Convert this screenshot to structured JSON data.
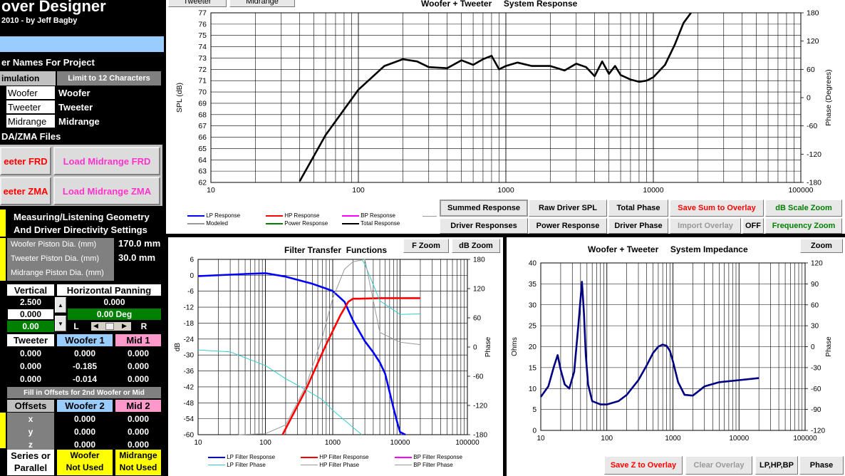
{
  "app": {
    "title": "over Designer",
    "subtitle": "2010 -  by Jeff Bagby"
  },
  "left": {
    "names_header": "er Names For Project",
    "simulation_label": "imulation",
    "limit_note": "Limit to 12 Characters",
    "drivers": [
      {
        "label": "Woofer",
        "value": "Woofer"
      },
      {
        "label": "Tweeter",
        "value": "Tweeter"
      },
      {
        "label": "Midrange",
        "value": "Midrange"
      }
    ],
    "files_header": "DA/ZMA Files",
    "btn_tweeter_frd": "eeter FRD",
    "btn_mid_frd": "Load Midrange FRD",
    "btn_tweeter_zma": "eeter ZMA",
    "btn_mid_zma": "Load Midrange ZMA",
    "geom_header_1": "Measuring/Listening Geometry",
    "geom_header_2": "And Driver Directivity Settings",
    "piston": [
      {
        "label": "Woofer Piston Dia. (mm)",
        "value": "170.0 mm"
      },
      {
        "label": "Tweeter Piston Dia. (mm)",
        "value": "30.0 mm"
      },
      {
        "label": "Midrange Piston Dia. (mm)",
        "value": ""
      }
    ],
    "vertical_label": "Vertical",
    "horizontal_label": "Horizontal Panning",
    "vertical_values": [
      "2.500",
      "0.000",
      "0.00"
    ],
    "horizontal_value": "0.000",
    "deg_value": "0.00 Deg",
    "pan_l": "L",
    "pan_r": "R",
    "offset_cols": [
      "Tweeter",
      "Woofer 1",
      "Mid 1"
    ],
    "offset_rows": [
      [
        "0.000",
        "0.000",
        "0.000"
      ],
      [
        "0.000",
        "-0.185",
        "0.000"
      ],
      [
        "0.000",
        "-0.014",
        "0.000"
      ]
    ],
    "second_note": "Fill in Offsets for 2nd Woofer or Mid",
    "offsets2_cols": [
      "Offsets",
      "Woofer 2",
      "Mid 2"
    ],
    "offsets2_rows": [
      [
        "x",
        "0.000",
        "0.000"
      ],
      [
        "y",
        "0.000",
        "0.000"
      ],
      [
        "z",
        "0.000",
        "0.000"
      ]
    ],
    "series_label_1": "Series or",
    "series_label_2": "Parallel",
    "woofer_state_1": "Woofer",
    "woofer_state_2": "Not Used",
    "mid_state_1": "Midrange",
    "mid_state_2": "Not Used"
  },
  "top_tabs": [
    "Tweeter",
    "Midrange"
  ],
  "top_chart": {
    "title": "Woofer + Tweeter     System Response",
    "ylabel": "SPL (dB)",
    "y2label": "Phase (Degrees)",
    "y_ticks": [
      "77",
      "76",
      "75",
      "74",
      "73",
      "72",
      "71",
      "70",
      "69",
      "68",
      "67",
      "66",
      "65",
      "64",
      "63",
      "62"
    ],
    "y2_ticks": [
      "180",
      "120",
      "60",
      "0",
      "-60",
      "-120",
      "-180"
    ],
    "x_ticks": [
      "10",
      "100",
      "1000",
      "10000",
      "100000"
    ],
    "legend": [
      {
        "label": "LP Response",
        "color": "#0000ff"
      },
      {
        "label": "HP Response",
        "color": "#ff0000"
      },
      {
        "label": "BP Response",
        "color": "#ff00ff"
      },
      {
        "label": "Modeled",
        "color": "#999999"
      },
      {
        "label": "Power Response",
        "color": "#008000"
      },
      {
        "label": "Total Response",
        "color": "#000000"
      }
    ]
  },
  "chart_buttons": {
    "summed": "Summed Response",
    "raw": "Raw Driver SPL",
    "total_phase": "Total Phase",
    "save_sum": "Save Sum to Overlay",
    "db_zoom": "dB Scale Zoom",
    "driver_resp": "Driver Responses",
    "power_resp": "Power Response",
    "driver_phase": "Driver Phase",
    "import_overlay": "Import Overlay",
    "off": "OFF",
    "freq_zoom": "Frequency Zoom"
  },
  "filter_chart": {
    "title": "Filter Transfer  Functions",
    "f_zoom": "F Zoom",
    "db_zoom": "dB Zoom",
    "ylabel": "dB",
    "y2label": "Phase",
    "y_ticks": [
      "6",
      "0",
      "-6",
      "-12",
      "-18",
      "-24",
      "-30",
      "-36",
      "-42",
      "-48",
      "-54",
      "-60"
    ],
    "y2_ticks": [
      "180",
      "120",
      "60",
      "0",
      "-60",
      "-120",
      "-180"
    ],
    "x_ticks": [
      "10",
      "100",
      "1000",
      "10000",
      "100000"
    ],
    "legend": [
      {
        "label": "LP Filter Response",
        "color": "#0000ff"
      },
      {
        "label": "HP Filter Response",
        "color": "#ff0000"
      },
      {
        "label": "BP Filter Response",
        "color": "#ff00ff"
      },
      {
        "label": "LP Filter Phase",
        "color": "#33cccc"
      },
      {
        "label": "HP Filter Phase",
        "color": "#999999"
      },
      {
        "label": "BP Filter Phase",
        "color": "#999999"
      }
    ]
  },
  "impedance_chart": {
    "title": "Woofer + Tweeter     System Impedance",
    "zoom": "Zoom",
    "ylabel": "Ohms",
    "y2label": "Phase",
    "y_ticks": [
      "40",
      "35",
      "30",
      "25",
      "20",
      "15",
      "10",
      "5",
      "0"
    ],
    "y2_ticks": [
      "120",
      "90",
      "60",
      "30",
      "0",
      "-30",
      "-60",
      "-90",
      "-120"
    ],
    "x_ticks": [
      "10",
      "100",
      "1000",
      "10000",
      "100000"
    ]
  },
  "bottom_buttons": {
    "save_z": "Save Z to Overlay",
    "clear": "Clear Overlay",
    "lphpbp": "LP,HP,BP",
    "phase": "Phase"
  },
  "chart_data": [
    {
      "type": "line",
      "title": "Woofer + Tweeter     System Response",
      "ylabel": "SPL (dB)",
      "xscale": "log",
      "xlim": [
        10,
        100000
      ],
      "ylim": [
        62,
        77
      ],
      "y2lim": [
        -180,
        180
      ],
      "series": [
        {
          "name": "Total Response",
          "color": "#000000",
          "x": [
            40,
            60,
            100,
            150,
            200,
            250,
            300,
            400,
            500,
            600,
            700,
            800,
            900,
            1000,
            1200,
            1500,
            2000,
            2500,
            3000,
            3500,
            4000,
            4500,
            5000,
            5500,
            6000,
            7000,
            8000,
            9000,
            10000,
            12000,
            14000,
            16000,
            18000
          ],
          "y": [
            62.1,
            66.2,
            70.2,
            72.3,
            72.9,
            72.7,
            72.2,
            72.1,
            72.8,
            72.4,
            72.9,
            73.2,
            72.0,
            72.3,
            72.6,
            72.3,
            72.3,
            71.9,
            72.5,
            72.2,
            71.4,
            72.7,
            71.6,
            72.3,
            71.5,
            71.1,
            70.9,
            71.0,
            71.3,
            72.4,
            74.2,
            76.1,
            77.5
          ]
        }
      ]
    },
    {
      "type": "line",
      "title": "Filter Transfer  Functions",
      "ylabel": "dB",
      "xscale": "log",
      "xlim": [
        10,
        100000
      ],
      "ylim": [
        -60,
        6
      ],
      "y2lim": [
        -180,
        180
      ],
      "series": [
        {
          "name": "LP Filter Response",
          "color": "#0000ff",
          "x": [
            10,
            50,
            100,
            200,
            500,
            800,
            1000,
            1500,
            2000,
            3000,
            4000,
            5000,
            6000,
            7000,
            8000,
            9000,
            10000,
            12000
          ],
          "y": [
            -0.3,
            0.5,
            0.8,
            -0.5,
            -3.2,
            -5.0,
            -5.9,
            -10.0,
            -17.0,
            -24.8,
            -29.0,
            -32.8,
            -37.0,
            -44.0,
            -50.0,
            -55.0,
            -59.0,
            -62.0
          ]
        },
        {
          "name": "HP Filter Response",
          "color": "#ff0000",
          "x": [
            180,
            250,
            400,
            600,
            800,
            1000,
            1300,
            1700,
            2000,
            2500,
            3500,
            5000,
            10000,
            20000
          ],
          "y": [
            -60,
            -53,
            -43,
            -33,
            -26,
            -21,
            -15,
            -10,
            -8.8,
            -8.8,
            -8.7,
            -8.6,
            -8.6,
            -8.6
          ]
        },
        {
          "name": "LP Filter Phase",
          "color": "#33cccc",
          "x": [
            10,
            30,
            100,
            200,
            400,
            700,
            1000,
            2000,
            2700,
            2710,
            3000,
            5000,
            10000,
            20000
          ],
          "y": [
            -6,
            -10,
            -38,
            -65,
            -88,
            -108,
            -130,
            -165,
            -180,
            180,
            170,
            95,
            67,
            68
          ]
        },
        {
          "name": "HP Filter Phase",
          "color": "#999999",
          "x": [
            40,
            100,
            200,
            400,
            700,
            1000,
            1500,
            2000,
            3000,
            5000,
            10000,
            20000
          ],
          "y": [
            -180,
            -178,
            -160,
            -80,
            20,
            100,
            160,
            175,
            182,
            30,
            10,
            5
          ]
        }
      ]
    },
    {
      "type": "line",
      "title": "Woofer + Tweeter     System Impedance",
      "ylabel": "Ohms",
      "xscale": "log",
      "xlim": [
        10,
        100000
      ],
      "ylim": [
        0,
        40
      ],
      "y2lim": [
        -120,
        120
      ],
      "series": [
        {
          "name": "Impedance",
          "color": "#000080",
          "x": [
            10,
            13,
            16,
            18,
            20,
            23,
            27,
            32,
            37,
            42,
            45,
            48,
            52,
            60,
            80,
            100,
            150,
            200,
            300,
            400,
            500,
            600,
            700,
            800,
            900,
            1000,
            1200,
            1500,
            2000,
            2500,
            3000,
            5000,
            10000,
            20000
          ],
          "y": [
            8.0,
            10.5,
            15.5,
            18.0,
            14.5,
            11.0,
            10.0,
            14.0,
            25.0,
            35.5,
            28.0,
            18.0,
            11.0,
            7.0,
            6.2,
            6.2,
            7.0,
            8.5,
            12.0,
            15.5,
            18.5,
            20.0,
            20.5,
            20.2,
            19.0,
            16.5,
            11.5,
            8.5,
            8.3,
            9.5,
            10.5,
            11.5,
            12.0,
            12.5
          ]
        }
      ]
    }
  ]
}
